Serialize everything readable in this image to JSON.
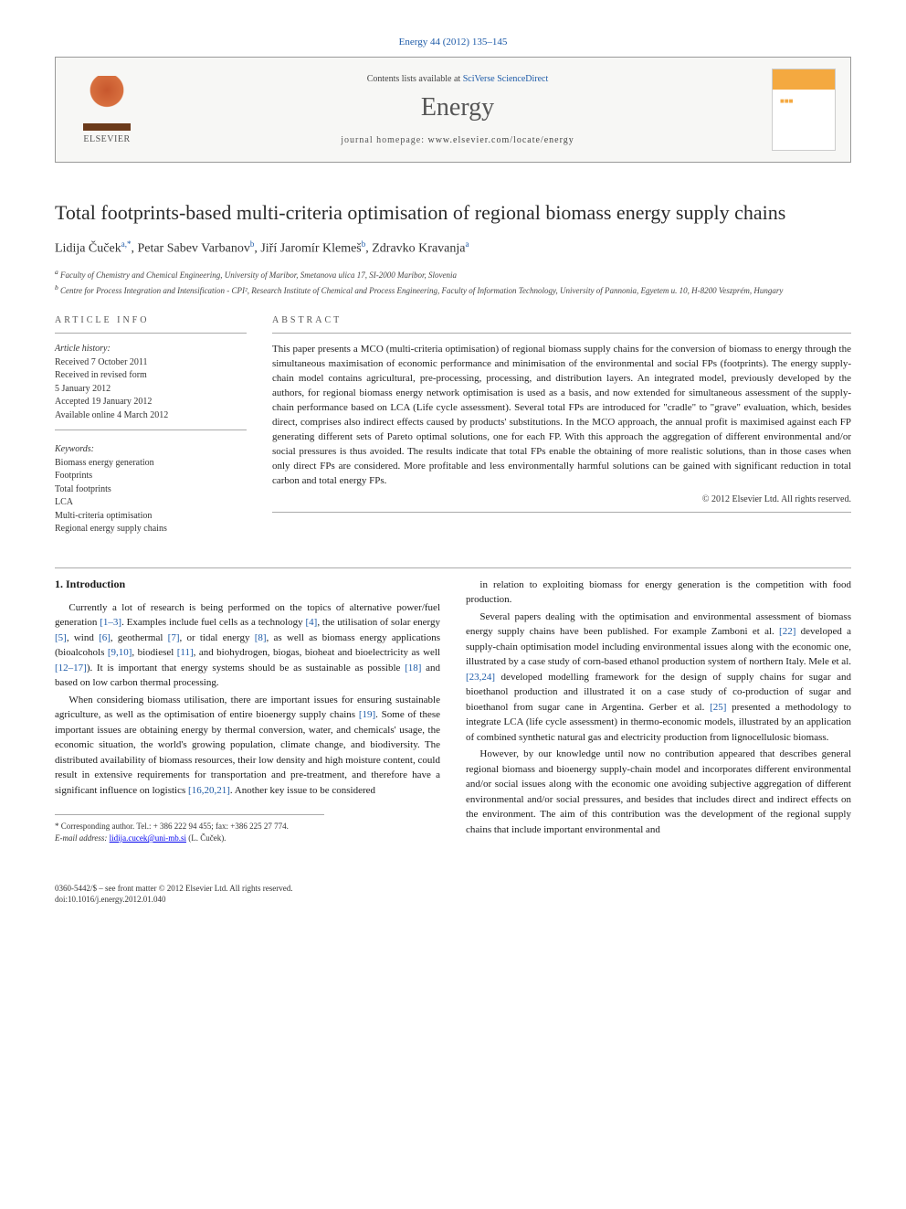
{
  "citation": "Energy 44 (2012) 135–145",
  "header": {
    "contents_prefix": "Contents lists available at ",
    "contents_link": "SciVerse ScienceDirect",
    "journal": "Energy",
    "homepage_prefix": "journal homepage: ",
    "homepage_url": "www.elsevier.com/locate/energy",
    "publisher": "ELSEVIER"
  },
  "title": "Total footprints-based multi-criteria optimisation of regional biomass energy supply chains",
  "authors_html": "Lidija Čuček",
  "authors": [
    {
      "name": "Lidija Čuček",
      "marks": "a,*"
    },
    {
      "name": "Petar Sabev Varbanov",
      "marks": "b"
    },
    {
      "name": "Jiří Jaromír Klemeš",
      "marks": "b"
    },
    {
      "name": "Zdravko Kravanja",
      "marks": "a"
    }
  ],
  "affiliations": [
    {
      "mark": "a",
      "text": "Faculty of Chemistry and Chemical Engineering, University of Maribor, Smetanova ulica 17, SI-2000 Maribor, Slovenia"
    },
    {
      "mark": "b",
      "text": "Centre for Process Integration and Intensification - CPI², Research Institute of Chemical and Process Engineering, Faculty of Information Technology, University of Pannonia, Egyetem u. 10, H-8200 Veszprém, Hungary"
    }
  ],
  "info": {
    "heading": "ARTICLE INFO",
    "history_label": "Article history:",
    "history": [
      "Received 7 October 2011",
      "Received in revised form",
      "5 January 2012",
      "Accepted 19 January 2012",
      "Available online 4 March 2012"
    ],
    "keywords_label": "Keywords:",
    "keywords": [
      "Biomass energy generation",
      "Footprints",
      "Total footprints",
      "LCA",
      "Multi-criteria optimisation",
      "Regional energy supply chains"
    ]
  },
  "abstract": {
    "heading": "ABSTRACT",
    "text": "This paper presents a MCO (multi-criteria optimisation) of regional biomass supply chains for the conversion of biomass to energy through the simultaneous maximisation of economic performance and minimisation of the environmental and social FPs (footprints). The energy supply-chain model contains agricultural, pre-processing, processing, and distribution layers. An integrated model, previously developed by the authors, for regional biomass energy network optimisation is used as a basis, and now extended for simultaneous assessment of the supply-chain performance based on LCA (Life cycle assessment). Several total FPs are introduced for \"cradle\" to \"grave\" evaluation, which, besides direct, comprises also indirect effects caused by products' substitutions. In the MCO approach, the annual profit is maximised against each FP generating different sets of Pareto optimal solutions, one for each FP. With this approach the aggregation of different environmental and/or social pressures is thus avoided. The results indicate that total FPs enable the obtaining of more realistic solutions, than in those cases when only direct FPs are considered. More profitable and less environmentally harmful solutions can be gained with significant reduction in total carbon and total energy FPs.",
    "copyright": "© 2012 Elsevier Ltd. All rights reserved."
  },
  "body": {
    "section_heading": "1. Introduction",
    "left_paras": [
      "Currently a lot of research is being performed on the topics of alternative power/fuel generation [1–3]. Examples include fuel cells as a technology [4], the utilisation of solar energy [5], wind [6], geothermal [7], or tidal energy [8], as well as biomass energy applications (bioalcohols [9,10], biodiesel [11], and biohydrogen, biogas, bioheat and bioelectricity as well [12–17]). It is important that energy systems should be as sustainable as possible [18] and based on low carbon thermal processing.",
      "When considering biomass utilisation, there are important issues for ensuring sustainable agriculture, as well as the optimisation of entire bioenergy supply chains [19]. Some of these important issues are obtaining energy by thermal conversion, water, and chemicals' usage, the economic situation, the world's growing population, climate change, and biodiversity. The distributed availability of biomass resources, their low density and high moisture content, could result in extensive requirements for transportation and pre-treatment, and therefore have a significant influence on logistics [16,20,21]. Another key issue to be considered"
    ],
    "right_paras": [
      "in relation to exploiting biomass for energy generation is the competition with food production.",
      "Several papers dealing with the optimisation and environmental assessment of biomass energy supply chains have been published. For example Zamboni et al. [22] developed a supply-chain optimisation model including environmental issues along with the economic one, illustrated by a case study of corn-based ethanol production system of northern Italy. Mele et al. [23,24] developed modelling framework for the design of supply chains for sugar and bioethanol production and illustrated it on a case study of co-production of sugar and bioethanol from sugar cane in Argentina. Gerber et al. [25] presented a methodology to integrate LCA (life cycle assessment) in thermo-economic models, illustrated by an application of combined synthetic natural gas and electricity production from lignocellulosic biomass.",
      "However, by our knowledge until now no contribution appeared that describes general regional biomass and bioenergy supply-chain model and incorporates different environmental and/or social issues along with the economic one avoiding subjective aggregation of different environmental and/or social pressures, and besides that includes direct and indirect effects on the environment. The aim of this contribution was the development of the regional supply chains that include important environmental and"
    ]
  },
  "corr": {
    "line1": "* Corresponding author. Tel.: + 386 222 94 455; fax: +386 225 27 774.",
    "line2_label": "E-mail address: ",
    "line2_email": "lidija.cucek@uni-mb.si",
    "line2_suffix": " (L. Čuček)."
  },
  "footer": {
    "line1": "0360-5442/$ – see front matter © 2012 Elsevier Ltd. All rights reserved.",
    "line2": "doi:10.1016/j.energy.2012.01.040"
  },
  "colors": {
    "link": "#1e5ba8",
    "text": "#1a1a1a",
    "rule": "#aaaaaa",
    "band_bg": "#f7f7f5",
    "cover_accent": "#f4a940"
  }
}
